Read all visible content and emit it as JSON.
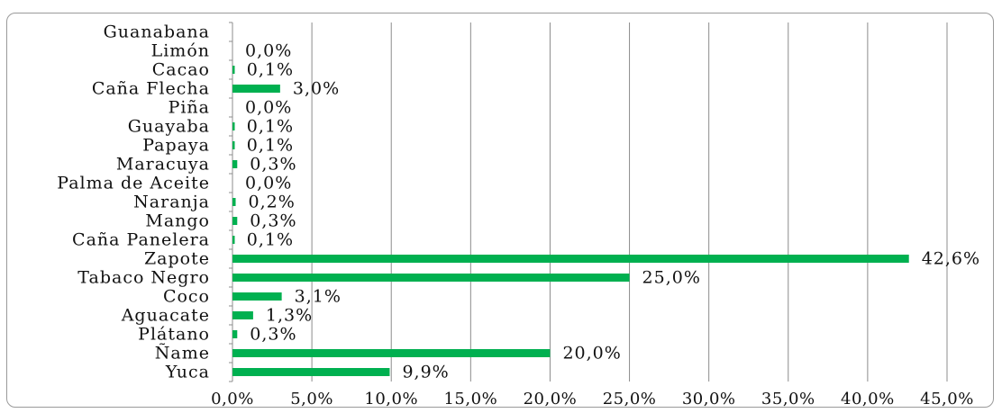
{
  "chart_data": {
    "type": "bar",
    "orientation": "horizontal",
    "categories": [
      "Guanabana",
      "Limón",
      "Cacao",
      "Caña Flecha",
      "Piña",
      "Guayaba",
      "Papaya",
      "Maracuya",
      "Palma de Aceite",
      "Naranja",
      "Mango",
      "Caña Panelera",
      "Zapote",
      "Tabaco Negro",
      "Coco",
      "Aguacate",
      "Plátano",
      "Ñame",
      "Yuca"
    ],
    "values": [
      null,
      0.0,
      0.1,
      3.0,
      0.0,
      0.1,
      0.1,
      0.3,
      0.0,
      0.2,
      0.3,
      0.1,
      42.6,
      25.0,
      3.1,
      1.3,
      0.3,
      20.0,
      9.9
    ],
    "value_labels": [
      "",
      "0,0%",
      "0,1%",
      "3,0%",
      "0,0%",
      "0,1%",
      "0,1%",
      "0,3%",
      "0,0%",
      "0,2%",
      "0,3%",
      "0,1%",
      "42,6%",
      "25,0%",
      "3,1%",
      "1,3%",
      "0,3%",
      "20,0%",
      "9,9%"
    ],
    "x_ticks": [
      "0,0%",
      "5,0%",
      "10,0%",
      "15,0%",
      "20,0%",
      "25,0%",
      "30,0%",
      "35,0%",
      "40,0%",
      "45,0%"
    ],
    "xlim": [
      0,
      45
    ],
    "title": "",
    "xlabel": "",
    "ylabel": "",
    "grid": "vertical",
    "bar_color": "#00b050"
  }
}
